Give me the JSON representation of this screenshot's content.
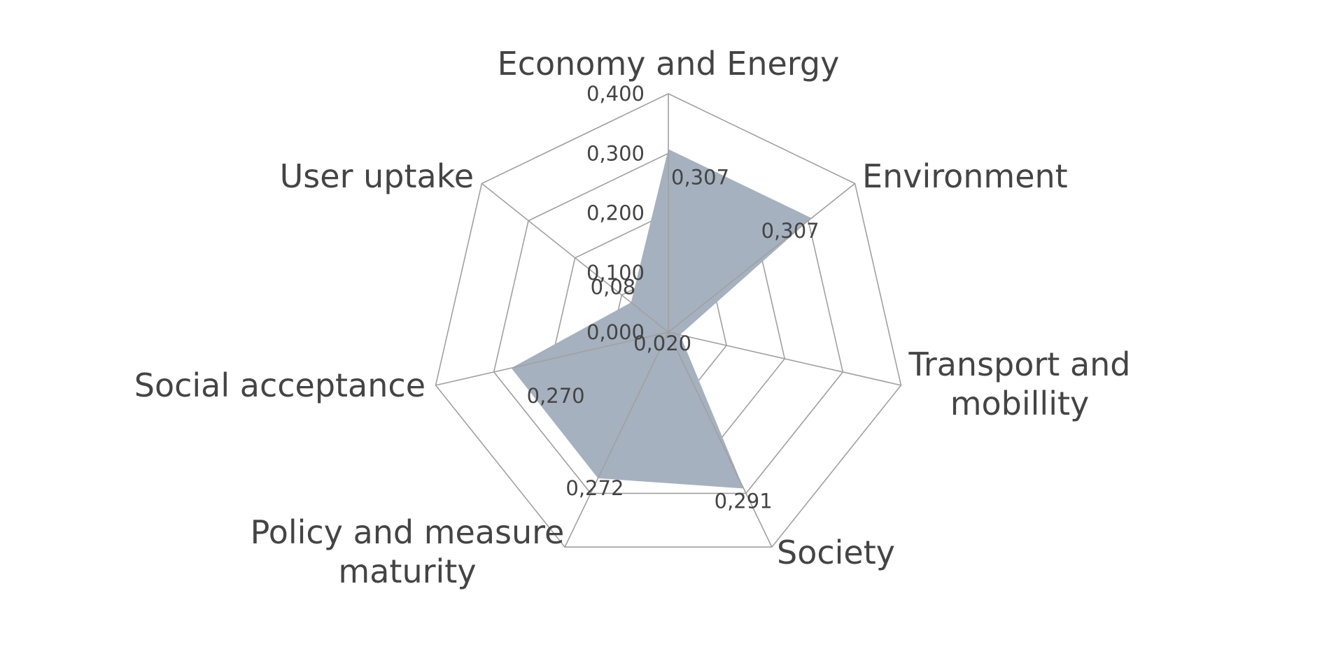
{
  "chart_data": {
    "type": "radar",
    "categories": [
      [
        "Economy and Energy"
      ],
      [
        "Environment"
      ],
      [
        "Transport and",
        "mobillity"
      ],
      [
        "Society"
      ],
      [
        "Policy and measure",
        "maturity"
      ],
      [
        "Social acceptance"
      ],
      [
        "User uptake"
      ]
    ],
    "values": [
      0.307,
      0.307,
      0.02,
      0.291,
      0.272,
      0.27,
      0.08
    ],
    "data_labels": [
      "0,307",
      "0,307",
      "0,020",
      "0,291",
      "0,272",
      "0,270",
      "0,08"
    ],
    "rlim": [
      0,
      0.4
    ],
    "ticks": [
      0,
      0.1,
      0.2,
      0.3,
      0.4
    ],
    "tick_labels": [
      "0,000",
      "0,100",
      "0,200",
      "0,300",
      "0,400"
    ],
    "fill_color": "#a6b1bf",
    "grid_color": "#a0a0a0",
    "text_color": "#444444",
    "grid": true,
    "legend": "none"
  }
}
